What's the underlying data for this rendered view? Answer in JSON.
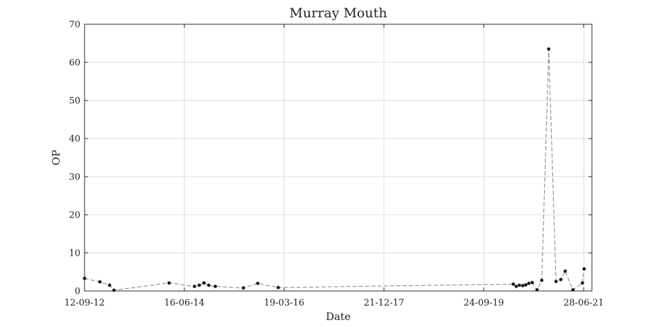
{
  "chart_data": {
    "type": "line",
    "title": "Murray Mouth",
    "xlabel": "Date",
    "ylabel": "OP",
    "x_axis_type": "date",
    "xlim": [
      "2012-09-12",
      "2021-08-20"
    ],
    "ylim": [
      0,
      70
    ],
    "x_ticks": [
      "2012-09-12",
      "2014-06-16",
      "2016-03-19",
      "2017-12-21",
      "2019-09-24",
      "2021-06-28"
    ],
    "x_tick_labels": [
      "12-09-12",
      "16-06-14",
      "19-03-16",
      "21-12-17",
      "24-09-19",
      "28-06-21"
    ],
    "y_ticks": [
      0,
      10,
      20,
      30,
      40,
      50,
      60,
      70
    ],
    "y_tick_labels": [
      "0",
      "10",
      "20",
      "30",
      "40",
      "50",
      "60",
      "70"
    ],
    "grid": true,
    "legend": "none",
    "colors": {
      "line": "#808080",
      "marker": "#111111",
      "grid": "#dddddd",
      "frame": "#262626"
    },
    "series": [
      {
        "x": [
          "2012-09-12",
          "2012-12-20",
          "2013-02-20",
          "2013-03-20",
          "2014-03-10",
          "2014-08-20",
          "2014-09-20",
          "2014-10-20",
          "2014-11-20",
          "2015-01-01",
          "2015-07-01",
          "2015-10-01",
          "2016-02-10",
          "2020-04-01",
          "2020-04-20",
          "2020-05-10",
          "2020-06-01",
          "2020-06-20",
          "2020-07-10",
          "2020-08-01",
          "2020-09-01",
          "2020-10-01",
          "2020-11-15",
          "2021-01-01",
          "2021-02-01",
          "2021-03-01",
          "2021-04-20",
          "2021-06-20",
          "2021-07-01"
        ],
        "y": [
          3.3,
          2.4,
          1.5,
          0.2,
          2.1,
          1.2,
          1.5,
          2.1,
          1.5,
          1.2,
          0.8,
          2.0,
          0.9,
          1.8,
          1.2,
          1.5,
          1.4,
          1.6,
          2.0,
          2.2,
          0.3,
          2.8,
          63.5,
          2.5,
          3.0,
          5.2,
          0.3,
          2.1,
          5.8
        ]
      }
    ]
  }
}
